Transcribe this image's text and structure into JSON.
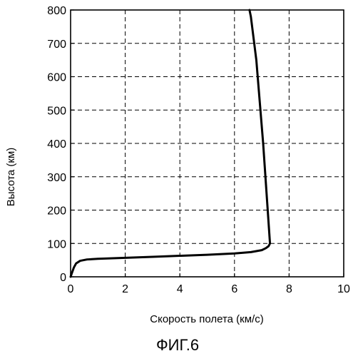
{
  "chart_data": {
    "type": "line",
    "title": "",
    "xlabel": "Скорость полета (км/с)",
    "ylabel": "Высота (км)",
    "caption": "ФИГ.6",
    "xlim": [
      0,
      10
    ],
    "ylim": [
      0,
      800
    ],
    "xticks": [
      0,
      2,
      4,
      6,
      8,
      10
    ],
    "yticks": [
      0,
      100,
      200,
      300,
      400,
      500,
      600,
      700,
      800
    ],
    "xtick_labels": [
      "0",
      "2",
      "4",
      "6",
      "8",
      "10"
    ],
    "ytick_labels": [
      "0",
      "100",
      "200",
      "300",
      "400",
      "500",
      "600",
      "700",
      "800"
    ],
    "grid": true,
    "grid_style": "dashed",
    "line_color": "#000000",
    "series": [
      {
        "x": [
          0.0,
          0.05,
          0.12,
          0.2,
          0.35,
          0.6,
          1.0,
          2.0,
          3.0,
          4.0,
          5.0,
          6.0,
          6.6,
          7.0,
          7.15,
          7.25,
          7.3,
          7.05,
          6.8,
          6.6,
          6.55
        ],
        "y": [
          0,
          12,
          28,
          40,
          48,
          52,
          54,
          57,
          60,
          63,
          66,
          70,
          74,
          80,
          86,
          92,
          100,
          400,
          650,
          780,
          800
        ]
      }
    ]
  }
}
